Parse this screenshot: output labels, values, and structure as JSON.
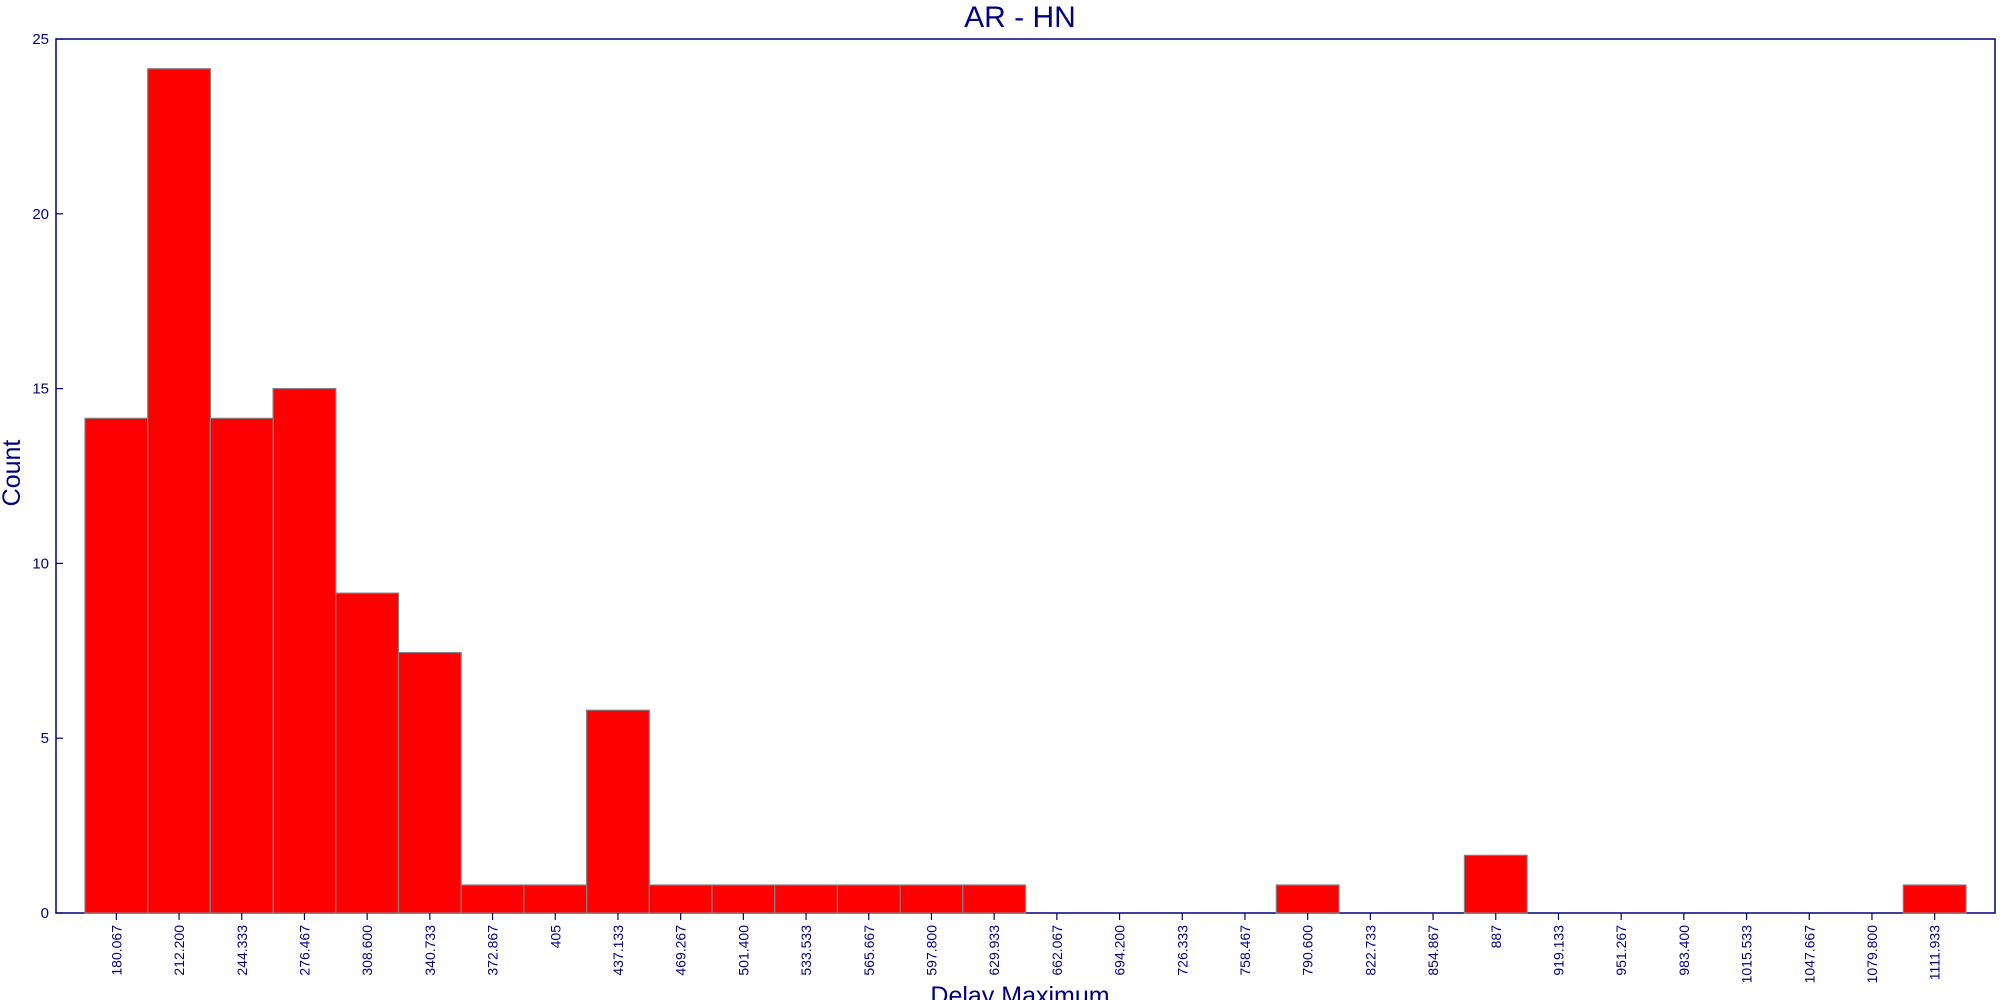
{
  "chart_data": {
    "type": "bar",
    "title": "AR - HN",
    "xlabel": "Delay Maximum",
    "ylabel": "Count",
    "ylim": [
      0,
      25
    ],
    "yticks": [
      "0",
      "5",
      "10",
      "15",
      "20",
      "25"
    ],
    "grid": false,
    "categories": [
      "180.067",
      "212.200",
      "244.333",
      "276.467",
      "308.600",
      "340.733",
      "372.867",
      "405",
      "437.133",
      "469.267",
      "501.400",
      "533.533",
      "565.667",
      "597.800",
      "629.933",
      "662.067",
      "694.200",
      "726.333",
      "758.467",
      "790.600",
      "822.733",
      "854.867",
      "887",
      "919.133",
      "951.267",
      "983.400",
      "1015.533",
      "1047.667",
      "1079.800",
      "1111.933"
    ],
    "values": [
      14.15,
      24.15,
      14.15,
      15.0,
      9.15,
      7.45,
      0.8,
      0.8,
      5.8,
      0.8,
      0.8,
      0.8,
      0.8,
      0.8,
      0.8,
      0,
      0,
      0,
      0,
      0.8,
      0,
      0,
      1.65,
      0,
      0,
      0,
      0,
      0,
      0,
      0.8
    ],
    "colors": {
      "bar": "#ff0000",
      "bar_edge": "#808080",
      "axis": "#000080",
      "text": "#000080"
    }
  }
}
